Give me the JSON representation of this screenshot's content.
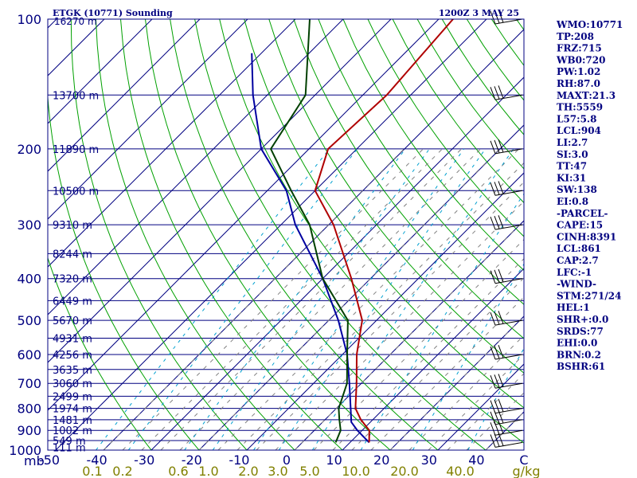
{
  "title_left": "ETGK (10771) Sounding",
  "title_right": "1200Z  3 MAY 25",
  "colors": {
    "isobar": "#000080",
    "isotherm": "#000080",
    "dry_adiabat": "#00a000",
    "moist_adiabat": "#808080",
    "mixing_ratio": "#00a0d0",
    "temperature": "#b00000",
    "dewpoint": "#004000",
    "parcel": "#0000a0",
    "axis_text": "#000080",
    "mixing_text": "#808000"
  },
  "chart_data": {
    "type": "line",
    "title": "ETGK (10771) Sounding",
    "subtitle": "1200Z  3 MAY 25",
    "pressure_levels": [
      100,
      200,
      300,
      400,
      500,
      600,
      700,
      800,
      900,
      1000
    ],
    "pressure_axis_label": "mb",
    "height_labels": [
      {
        "p": 150,
        "h": "13700 m"
      },
      {
        "p": 200,
        "h": "11890 m"
      },
      {
        "p": 250,
        "h": "10500 m"
      },
      {
        "p": 300,
        "h": "9310 m"
      },
      {
        "p": 350,
        "h": "8244 m"
      },
      {
        "p": 400,
        "h": "7320 m"
      },
      {
        "p": 450,
        "h": "6449 m"
      },
      {
        "p": 500,
        "h": "5670 m"
      },
      {
        "p": 550,
        "h": "4931 m"
      },
      {
        "p": 600,
        "h": "4256 m"
      },
      {
        "p": 650,
        "h": "3635 m"
      },
      {
        "p": 700,
        "h": "3060 m"
      },
      {
        "p": 750,
        "h": "2499 m"
      },
      {
        "p": 800,
        "h": "1974 m"
      },
      {
        "p": 850,
        "h": "1481 m"
      },
      {
        "p": 900,
        "h": "1002 m"
      },
      {
        "p": 950,
        "h": "549 m"
      },
      {
        "p": 985,
        "h": "111 m"
      }
    ],
    "top_height_label": "16270 m",
    "temperature_ticks": [
      "-50",
      "-40",
      "-30",
      "-20",
      "-10",
      "0",
      "10",
      "20",
      "30",
      "40",
      "C"
    ],
    "mixing_ratio_ticks": [
      "0.1",
      "0.2",
      "0.6",
      "1.0",
      "2.0",
      "3.0",
      "5.0",
      "10.0",
      "20.0",
      "40.0",
      "g/kg"
    ],
    "temperature_profile": [
      {
        "p": 960,
        "t": 14
      },
      {
        "p": 900,
        "t": 11.5
      },
      {
        "p": 850,
        "t": 7.5
      },
      {
        "p": 800,
        "t": 4
      },
      {
        "p": 700,
        "t": -1
      },
      {
        "p": 600,
        "t": -7
      },
      {
        "p": 500,
        "t": -13
      },
      {
        "p": 400,
        "t": -24
      },
      {
        "p": 300,
        "t": -39
      },
      {
        "p": 250,
        "t": -50
      },
      {
        "p": 200,
        "t": -56
      },
      {
        "p": 150,
        "t": -55
      },
      {
        "p": 100,
        "t": -57
      }
    ],
    "dewpoint_profile": [
      {
        "p": 960,
        "t": 7
      },
      {
        "p": 900,
        "t": 5.5
      },
      {
        "p": 850,
        "t": 3
      },
      {
        "p": 800,
        "t": 0.5
      },
      {
        "p": 700,
        "t": -3
      },
      {
        "p": 600,
        "t": -9
      },
      {
        "p": 500,
        "t": -16
      },
      {
        "p": 400,
        "t": -30
      },
      {
        "p": 300,
        "t": -44
      },
      {
        "p": 250,
        "t": -55
      },
      {
        "p": 200,
        "t": -68
      },
      {
        "p": 150,
        "t": -72
      },
      {
        "p": 100,
        "t": -87
      }
    ],
    "parcel_profile": [
      {
        "p": 960,
        "t": 14
      },
      {
        "p": 900,
        "t": 9
      },
      {
        "p": 861,
        "t": 6
      },
      {
        "p": 800,
        "t": 3
      },
      {
        "p": 700,
        "t": -2.5
      },
      {
        "p": 600,
        "t": -9
      },
      {
        "p": 500,
        "t": -18
      },
      {
        "p": 400,
        "t": -30
      },
      {
        "p": 300,
        "t": -47
      },
      {
        "p": 250,
        "t": -56
      },
      {
        "p": 200,
        "t": -70
      },
      {
        "p": 150,
        "t": -83
      },
      {
        "p": 120,
        "t": -92
      }
    ],
    "wind_barb_levels": [
      960,
      900,
      850,
      800,
      700,
      600,
      500,
      400,
      300,
      250,
      200,
      150,
      100
    ]
  },
  "indices": [
    "WMO:10771",
    "TP:208",
    "FRZ:715",
    "WB0:720",
    "PW:1.02",
    "RH:87.0",
    "MAXT:21.3",
    "TH:5559",
    "L57:5.8",
    "LCL:904",
    "LI:2.7",
    "SI:3.0",
    "TT:47",
    "KI:31",
    "SW:138",
    "EI:0.8",
    "-PARCEL-",
    "CAPE:15",
    "CINH:8391",
    "LCL:861",
    "CAP:2.7",
    "LFC:-1",
    "-WIND-",
    "STM:271/24",
    "HEL:1",
    "SHR+:0.0",
    "SRDS:77",
    "EHI:0.0",
    "BRN:0.2",
    "BSHR:61"
  ]
}
